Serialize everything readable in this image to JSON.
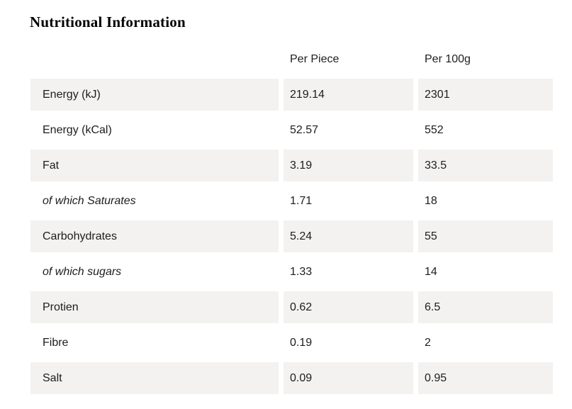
{
  "section": {
    "title": "Nutritional Information"
  },
  "table": {
    "columns": [
      "",
      "Per Piece",
      "Per 100g"
    ],
    "rows": [
      {
        "label": "Energy (kJ)",
        "per_piece": "219.14",
        "per_100g": "2301",
        "italic": false
      },
      {
        "label": "Energy (kCal)",
        "per_piece": "52.57",
        "per_100g": "552",
        "italic": false
      },
      {
        "label": "Fat",
        "per_piece": "3.19",
        "per_100g": "33.5",
        "italic": false
      },
      {
        "label": "of which Saturates",
        "per_piece": "1.71",
        "per_100g": "18",
        "italic": true
      },
      {
        "label": "Carbohydrates",
        "per_piece": "5.24",
        "per_100g": "55",
        "italic": false
      },
      {
        "label": "of which sugars",
        "per_piece": "1.33",
        "per_100g": "14",
        "italic": true
      },
      {
        "label": "Protien",
        "per_piece": "0.62",
        "per_100g": "6.5",
        "italic": false
      },
      {
        "label": "Fibre",
        "per_piece": "0.19",
        "per_100g": "2",
        "italic": false
      },
      {
        "label": "Salt",
        "per_piece": "0.09",
        "per_100g": "0.95",
        "italic": false
      }
    ]
  },
  "colors": {
    "stripe_background": "#f3f2f0",
    "text": "#1d1d1b",
    "title": "#000000",
    "page_background": "#ffffff"
  }
}
